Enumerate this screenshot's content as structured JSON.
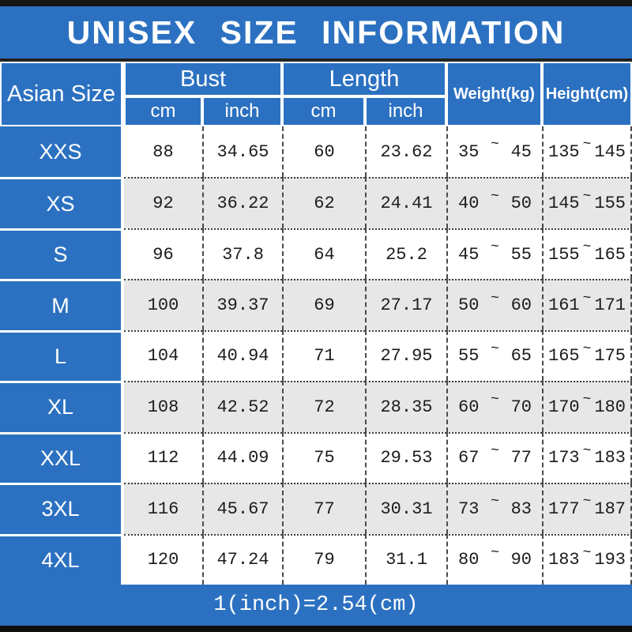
{
  "title": "UNISEX SIZE INFORMATION",
  "header": {
    "asian_size": "Asian Size",
    "bust": "Bust",
    "length": "Length",
    "weight": "Weight(kg)",
    "height": "Height(cm)",
    "cm": "cm",
    "inch": "inch"
  },
  "symbols": {
    "tilde": "~"
  },
  "footer": {
    "note": "1(inch)=2.54(cm)"
  },
  "colors": {
    "blue": "#2c71c1",
    "row_alt": "#e8e7e7",
    "bar_black": "#161616"
  },
  "chart_data": {
    "type": "table",
    "title": "UNISEX SIZE INFORMATION",
    "columns": [
      "Asian Size",
      "Bust cm",
      "Bust inch",
      "Length cm",
      "Length inch",
      "Weight(kg)",
      "Height(cm)"
    ],
    "rows": [
      {
        "size": "XXS",
        "bust_cm": "88",
        "bust_inch": "34.65",
        "length_cm": "60",
        "length_inch": "23.62",
        "weight_min": "35",
        "weight_max": "45",
        "height_min": "135",
        "height_max": "145"
      },
      {
        "size": "XS",
        "bust_cm": "92",
        "bust_inch": "36.22",
        "length_cm": "62",
        "length_inch": "24.41",
        "weight_min": "40",
        "weight_max": "50",
        "height_min": "145",
        "height_max": "155"
      },
      {
        "size": "S",
        "bust_cm": "96",
        "bust_inch": "37.8",
        "length_cm": "64",
        "length_inch": "25.2",
        "weight_min": "45",
        "weight_max": "55",
        "height_min": "155",
        "height_max": "165"
      },
      {
        "size": "M",
        "bust_cm": "100",
        "bust_inch": "39.37",
        "length_cm": "69",
        "length_inch": "27.17",
        "weight_min": "50",
        "weight_max": "60",
        "height_min": "161",
        "height_max": "171"
      },
      {
        "size": "L",
        "bust_cm": "104",
        "bust_inch": "40.94",
        "length_cm": "71",
        "length_inch": "27.95",
        "weight_min": "55",
        "weight_max": "65",
        "height_min": "165",
        "height_max": "175"
      },
      {
        "size": "XL",
        "bust_cm": "108",
        "bust_inch": "42.52",
        "length_cm": "72",
        "length_inch": "28.35",
        "weight_min": "60",
        "weight_max": "70",
        "height_min": "170",
        "height_max": "180"
      },
      {
        "size": "XXL",
        "bust_cm": "112",
        "bust_inch": "44.09",
        "length_cm": "75",
        "length_inch": "29.53",
        "weight_min": "67",
        "weight_max": "77",
        "height_min": "173",
        "height_max": "183"
      },
      {
        "size": "3XL",
        "bust_cm": "116",
        "bust_inch": "45.67",
        "length_cm": "77",
        "length_inch": "30.31",
        "weight_min": "73",
        "weight_max": "83",
        "height_min": "177",
        "height_max": "187"
      },
      {
        "size": "4XL",
        "bust_cm": "120",
        "bust_inch": "47.24",
        "length_cm": "79",
        "length_inch": "31.1",
        "weight_min": "80",
        "weight_max": "90",
        "height_min": "183",
        "height_max": "193"
      }
    ],
    "unit_note": "1(inch)=2.54(cm)"
  }
}
